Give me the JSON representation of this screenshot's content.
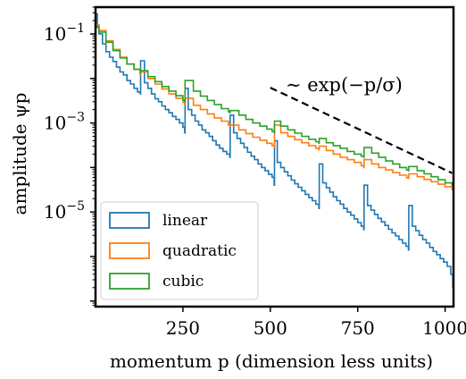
{
  "chart_data": {
    "type": "line",
    "xlabel": "momentum p (dimension less units)",
    "ylabel": "amplitude ψp",
    "xlim": [
      0,
      1024
    ],
    "ylim": [
      7.5e-08,
      0.4
    ],
    "yscale": "log",
    "x_ticks": [
      {
        "value": 250,
        "label": "250"
      },
      {
        "value": 500,
        "label": "500"
      },
      {
        "value": 750,
        "label": "750"
      },
      {
        "value": 1000,
        "label": "1000"
      }
    ],
    "y_ticks": [
      {
        "value": 0.1,
        "base": "10",
        "exp": "−1"
      },
      {
        "value": 0.001,
        "base": "10",
        "exp": "−3"
      },
      {
        "value": 1e-05,
        "base": "10",
        "exp": "−5"
      }
    ],
    "grid": false,
    "legend_position": "lower-left",
    "series": [
      {
        "name": "linear",
        "color": "#1f77b4",
        "x": [
          2,
          5,
          10,
          20,
          30,
          40,
          50,
          60,
          70,
          80,
          90,
          100,
          110,
          120,
          128,
          129,
          140,
          150,
          160,
          170,
          180,
          190,
          200,
          210,
          220,
          230,
          240,
          250,
          255,
          256,
          265,
          275,
          285,
          295,
          305,
          315,
          325,
          335,
          345,
          355,
          365,
          375,
          384,
          385,
          395,
          405,
          415,
          425,
          435,
          445,
          455,
          465,
          475,
          485,
          495,
          505,
          511,
          512,
          520,
          530,
          540,
          550,
          560,
          570,
          580,
          590,
          600,
          610,
          620,
          630,
          639,
          640,
          650,
          660,
          670,
          680,
          690,
          700,
          710,
          720,
          730,
          740,
          750,
          760,
          767,
          768,
          778,
          788,
          798,
          808,
          818,
          828,
          838,
          848,
          858,
          868,
          878,
          888,
          895,
          896,
          906,
          916,
          926,
          936,
          946,
          956,
          966,
          976,
          986,
          996,
          1006,
          1016,
          1022
        ],
        "y": [
          0.28,
          0.15,
          0.1,
          0.06,
          0.04,
          0.03,
          0.024,
          0.018,
          0.014,
          0.012,
          0.009,
          0.0075,
          0.006,
          0.005,
          0.0045,
          0.025,
          0.008,
          0.006,
          0.0045,
          0.0035,
          0.003,
          0.0024,
          0.002,
          0.0017,
          0.0014,
          0.0012,
          0.001,
          0.0008,
          0.0006,
          0.006,
          0.002,
          0.0015,
          0.0011,
          0.0009,
          0.0007,
          0.0006,
          0.0005,
          0.0004,
          0.00032,
          0.00027,
          0.00023,
          0.0002,
          0.00017,
          0.0015,
          0.0006,
          0.00045,
          0.00035,
          0.00028,
          0.00022,
          0.00018,
          0.00015,
          0.00012,
          0.0001,
          8.5e-05,
          7e-05,
          6e-05,
          4e-05,
          0.0004,
          0.00013,
          0.0001,
          8e-05,
          6.5e-05,
          5.2e-05,
          4.3e-05,
          3.6e-05,
          3e-05,
          2.5e-05,
          2.1e-05,
          1.8e-05,
          1.5e-05,
          1.2e-05,
          0.00012,
          4.5e-05,
          3.5e-05,
          2.8e-05,
          2.2e-05,
          1.8e-05,
          1.5e-05,
          1.2e-05,
          1e-05,
          8.5e-06,
          7e-06,
          5.8e-06,
          4.8e-06,
          4e-06,
          4e-05,
          1.4e-05,
          1.1e-05,
          8.8e-06,
          7.2e-06,
          6e-06,
          5e-06,
          4.1e-06,
          3.4e-06,
          2.9e-06,
          2.4e-06,
          2e-06,
          1.7e-06,
          1.4e-06,
          1.4e-05,
          4.8e-06,
          3.8e-06,
          3e-06,
          2.4e-06,
          2e-06,
          1.6e-06,
          1.3e-06,
          1.1e-06,
          9e-07,
          7.5e-07,
          6e-07,
          4e-07,
          2e-07
        ]
      },
      {
        "name": "quadratic",
        "color": "#ff7f0e",
        "x": [
          2,
          10,
          30,
          50,
          70,
          90,
          110,
          128,
          129,
          150,
          170,
          190,
          210,
          230,
          250,
          255,
          256,
          280,
          300,
          320,
          340,
          360,
          380,
          384,
          385,
          410,
          430,
          450,
          470,
          490,
          505,
          511,
          512,
          530,
          550,
          570,
          590,
          610,
          630,
          639,
          640,
          660,
          680,
          700,
          720,
          740,
          760,
          767,
          768,
          790,
          810,
          830,
          850,
          870,
          890,
          895,
          896,
          920,
          940,
          960,
          980,
          1000,
          1020
        ],
        "y": [
          0.16,
          0.12,
          0.07,
          0.045,
          0.03,
          0.021,
          0.016,
          0.012,
          0.014,
          0.01,
          0.0075,
          0.0058,
          0.0045,
          0.0036,
          0.0029,
          0.0026,
          0.0036,
          0.0025,
          0.002,
          0.0016,
          0.0013,
          0.0011,
          0.0009,
          0.00085,
          0.0009,
          0.0007,
          0.00058,
          0.00048,
          0.00041,
          0.00035,
          0.00031,
          0.00029,
          0.0009,
          0.0006,
          0.0005,
          0.00042,
          0.00036,
          0.00031,
          0.00027,
          0.00025,
          0.0003,
          0.00024,
          0.0002,
          0.00017,
          0.00015,
          0.00013,
          0.00011,
          0.0001,
          0.00015,
          0.00012,
          0.0001,
          8.8e-05,
          7.7e-05,
          6.7e-05,
          5.9e-05,
          5.7e-05,
          7.2e-05,
          6.2e-05,
          5.4e-05,
          4.8e-05,
          4.2e-05,
          3.7e-05,
          3.1e-05
        ]
      },
      {
        "name": "cubic",
        "color": "#2ca02c",
        "x": [
          2,
          10,
          30,
          50,
          70,
          90,
          110,
          128,
          129,
          150,
          170,
          190,
          210,
          230,
          250,
          255,
          256,
          280,
          300,
          320,
          340,
          360,
          380,
          384,
          385,
          410,
          430,
          450,
          470,
          490,
          505,
          511,
          512,
          530,
          550,
          570,
          590,
          610,
          630,
          639,
          640,
          660,
          680,
          700,
          720,
          740,
          760,
          767,
          768,
          790,
          810,
          830,
          850,
          870,
          890,
          895,
          896,
          920,
          940,
          960,
          980,
          1000,
          1020
        ],
        "y": [
          0.14,
          0.11,
          0.065,
          0.042,
          0.029,
          0.021,
          0.016,
          0.013,
          0.015,
          0.011,
          0.0085,
          0.0066,
          0.0052,
          0.0041,
          0.0033,
          0.003,
          0.009,
          0.0052,
          0.004,
          0.0032,
          0.0026,
          0.0021,
          0.0018,
          0.0017,
          0.0019,
          0.0015,
          0.0012,
          0.001,
          0.00085,
          0.00073,
          0.00065,
          0.0006,
          0.0011,
          0.00085,
          0.0007,
          0.00059,
          0.0005,
          0.00043,
          0.00038,
          0.00035,
          0.00045,
          0.00036,
          0.00031,
          0.00027,
          0.00023,
          0.0002,
          0.00018,
          0.00017,
          0.00028,
          0.00021,
          0.00017,
          0.00014,
          0.00012,
          0.0001,
          8.8e-05,
          8.5e-05,
          0.000105,
          8.5e-05,
          7.2e-05,
          6.2e-05,
          5.3e-05,
          4.5e-05,
          3.8e-05
        ]
      }
    ],
    "reference_line": {
      "label": "∼ exp(−p/σ)",
      "style": "dashed",
      "color": "#000000",
      "x": [
        500,
        1020
      ],
      "y": [
        0.0062,
        7.5e-05
      ]
    }
  }
}
